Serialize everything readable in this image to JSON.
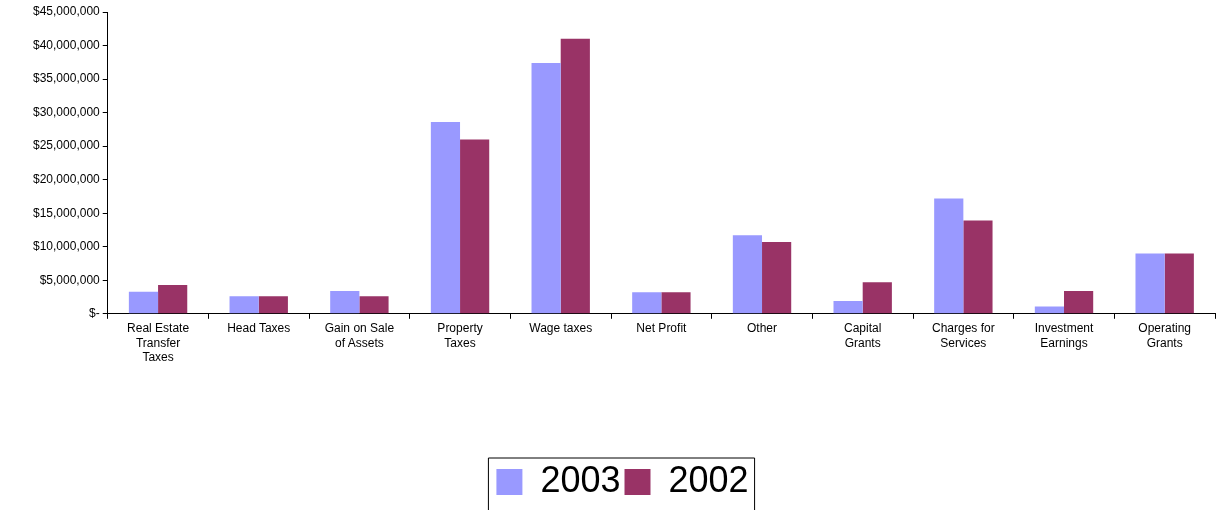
{
  "chart_data": {
    "type": "bar",
    "categories": [
      "Real Estate Transfer Taxes",
      "Head Taxes",
      "Gain on Sale of Assets",
      "Property Taxes",
      "Wage taxes",
      "Net Profit",
      "Other",
      "Capital Grants",
      "Charges for Services",
      "Investment Earnings",
      "Operating Grants"
    ],
    "series": [
      {
        "name": "2003",
        "color": "#9999ff",
        "values": [
          3300000,
          2600000,
          3400000,
          28600000,
          37400000,
          3200000,
          11700000,
          1900000,
          17200000,
          1100000,
          9000000
        ]
      },
      {
        "name": "2002",
        "color": "#993366",
        "values": [
          4300000,
          2600000,
          2600000,
          26000000,
          41000000,
          3200000,
          10700000,
          4700000,
          13900000,
          3400000,
          9000000
        ]
      }
    ],
    "ylim": [
      0,
      45000000
    ],
    "yticks": [
      {
        "value": 0,
        "label": "$-"
      },
      {
        "value": 5000000,
        "label": "$5,000,000"
      },
      {
        "value": 10000000,
        "label": "$10,000,000"
      },
      {
        "value": 15000000,
        "label": "$15,000,000"
      },
      {
        "value": 20000000,
        "label": "$20,000,000"
      },
      {
        "value": 25000000,
        "label": "$25,000,000"
      },
      {
        "value": 30000000,
        "label": "$30,000,000"
      },
      {
        "value": 35000000,
        "label": "$35,000,000"
      },
      {
        "value": 40000000,
        "label": "$40,000,000"
      },
      {
        "value": 45000000,
        "label": "$45,000,000"
      }
    ],
    "grid": false,
    "legend": "bottom"
  }
}
